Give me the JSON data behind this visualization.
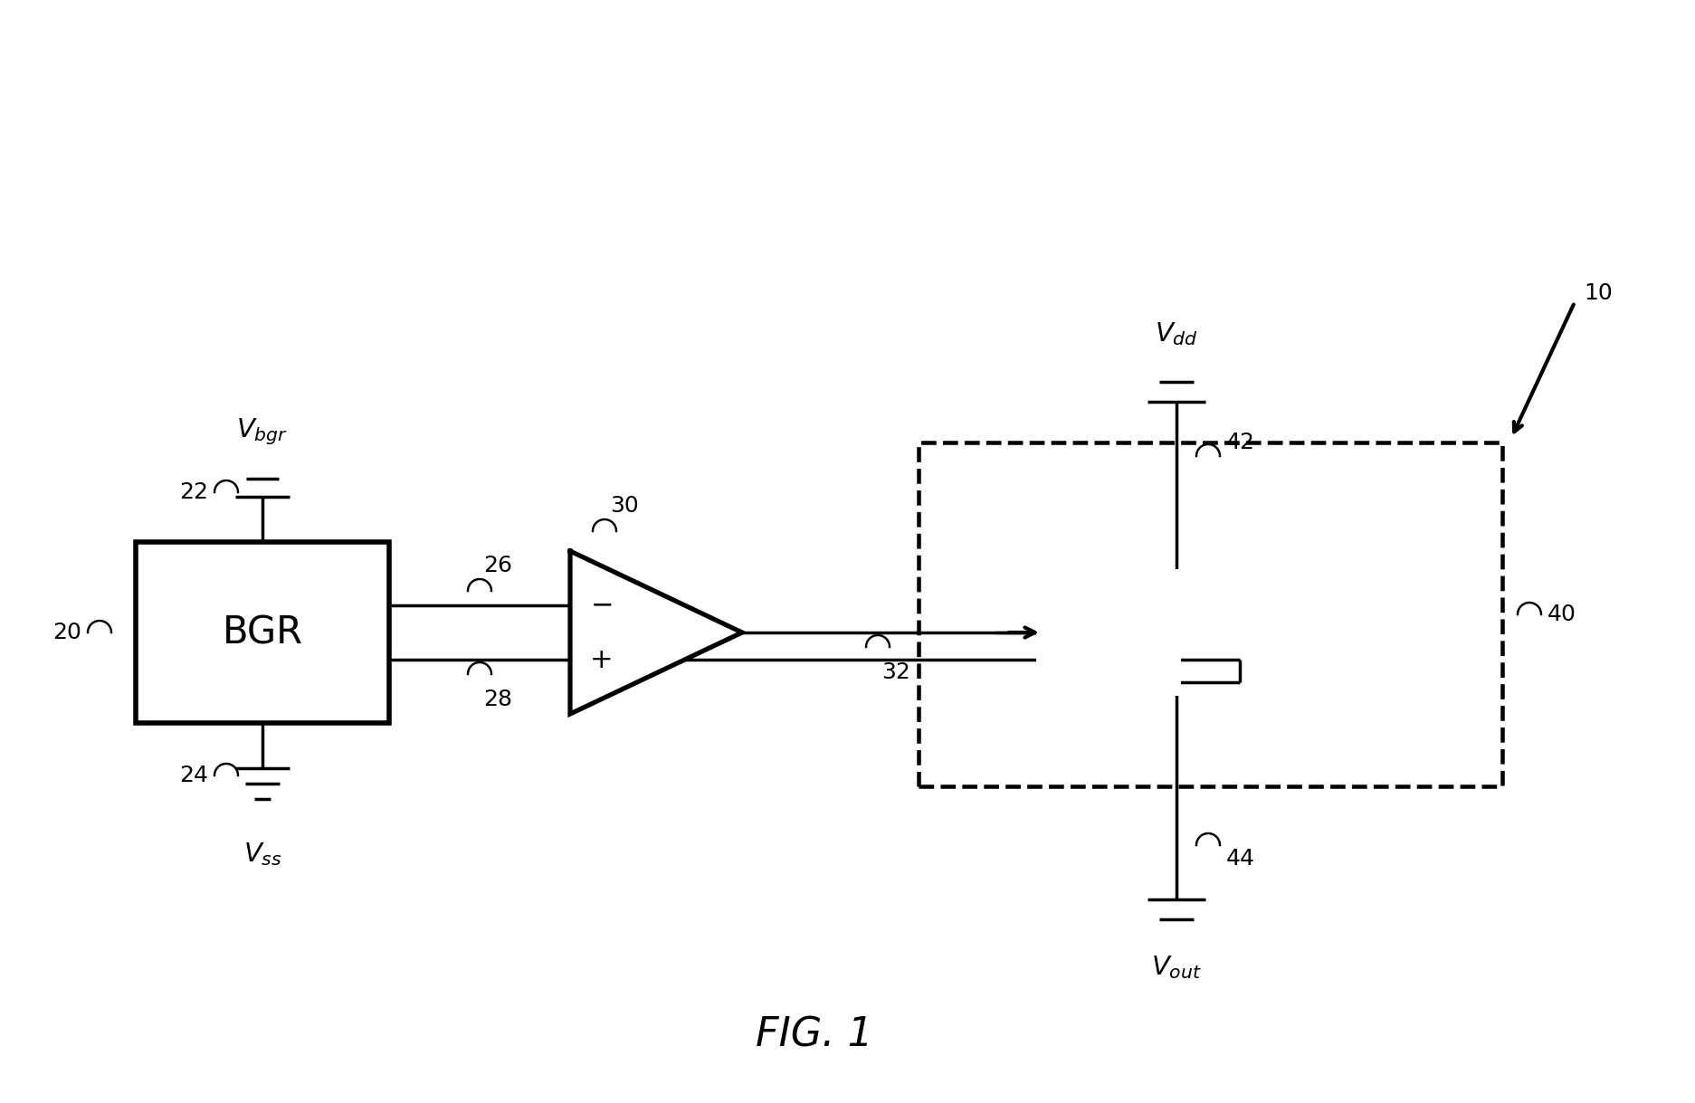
{
  "fig_width": 18.73,
  "fig_height": 12.19,
  "dpi": 100,
  "bg_color": "#ffffff",
  "line_color": "#000000",
  "line_width": 2.5,
  "title": "FIG. 1",
  "title_fontsize": 32,
  "title_style": "italic",
  "bgr_label": "BGR",
  "vbgr_label": "$V_{bgr}$",
  "vss_label": "$V_{ss}$",
  "vdd_label": "$V_{dd}$",
  "vout_label": "$V_{out}$",
  "label_10": "10",
  "label_20": "20",
  "label_22": "22",
  "label_24": "24",
  "label_26": "26",
  "label_28": "28",
  "label_30": "30",
  "label_32": "32",
  "label_40": "40",
  "label_42": "42",
  "label_44": "44"
}
